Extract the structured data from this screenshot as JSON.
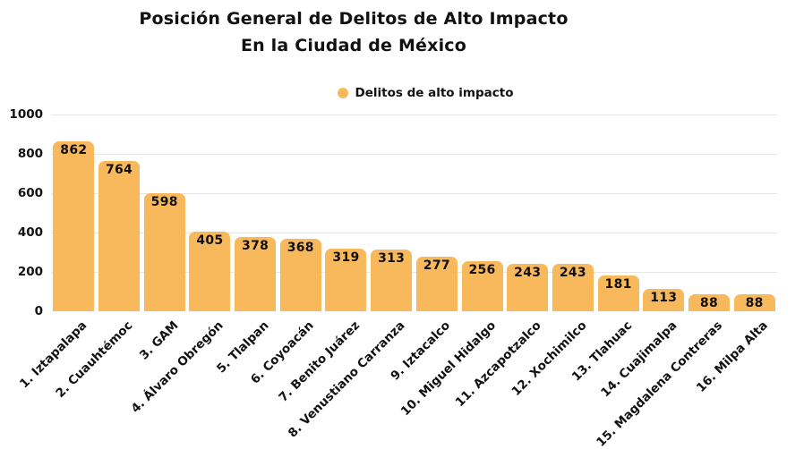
{
  "title": {
    "line1": "Posición General de Delitos de Alto Impacto",
    "line2": "En la Ciudad de México"
  },
  "legend": {
    "label": "Delitos de alto impacto",
    "color": "#F8B95C"
  },
  "colors": {
    "bar": "#F8B95C",
    "text": "#111111",
    "gridline": "#e7e7e4",
    "background": "#ffffff"
  },
  "chart_data": {
    "type": "bar",
    "title": "Posición General de Delitos de Alto Impacto En la Ciudad de México",
    "xlabel": "",
    "ylabel": "",
    "categories": [
      "1. Iztapalapa",
      "2. Cuauhtémoc",
      "3. GAM",
      "4. Álvaro Obregón",
      "5. Tlalpan",
      "6. Coyoacán",
      "7. Benito Juárez",
      "8. Venustiano Carranza",
      "9. Iztacalco",
      "10. Miguel Hidalgo",
      "11. Azcapotzalco",
      "12. Xochimilco",
      "13. Tlahuac",
      "14. Cuajimalpa",
      "15. Magdalena Contreras",
      "16. Milpa Alta"
    ],
    "values": [
      862,
      764,
      598,
      405,
      378,
      368,
      319,
      313,
      277,
      256,
      243,
      243,
      181,
      113,
      88,
      88
    ],
    "series_name": "Delitos de alto impacto",
    "ylim": [
      0,
      1000
    ],
    "yticks": [
      0,
      200,
      400,
      600,
      800,
      1000
    ],
    "grid": true,
    "value_labels": "inside-top",
    "legend_position": "top-center",
    "bar_color": "#F8B95C"
  }
}
